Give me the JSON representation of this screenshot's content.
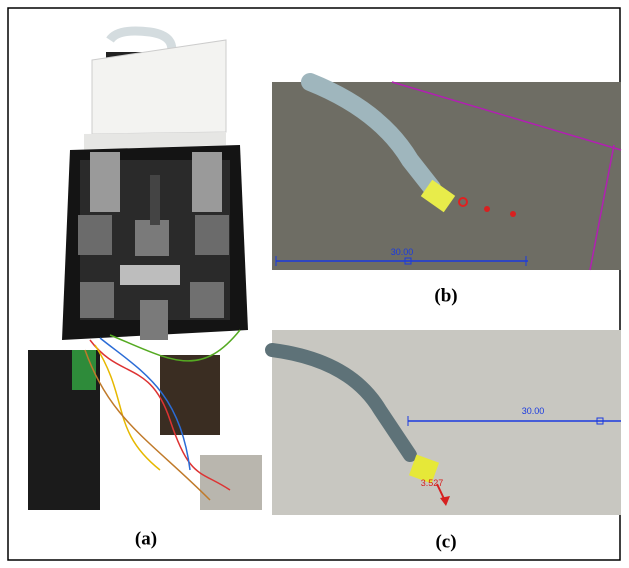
{
  "panels": [
    {
      "label": "(a)"
    },
    {
      "label": "(b)",
      "scale_label": "30.00"
    },
    {
      "label": "(c)",
      "scale_label": "30.00",
      "measure_label": "3.527"
    }
  ]
}
